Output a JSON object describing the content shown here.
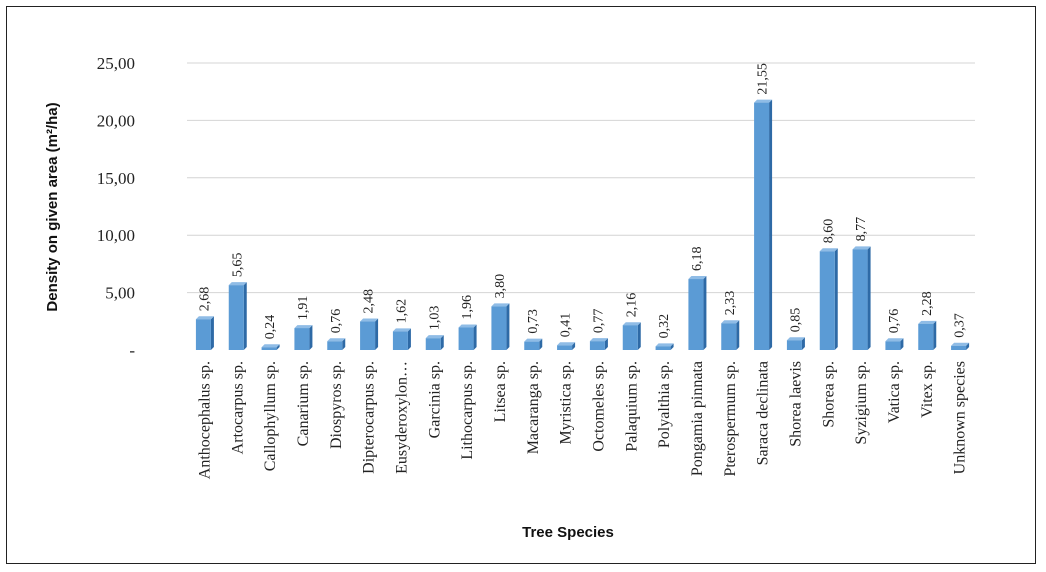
{
  "chart_data": {
    "type": "bar",
    "title": "",
    "xlabel": "Tree Species",
    "ylabel": "Density on  given area (m²/ha)",
    "ylim": [
      0,
      25
    ],
    "yticks": [
      0,
      5,
      10,
      15,
      20,
      25
    ],
    "ytick_labels": [
      "-",
      "5,00",
      "10,00",
      "15,00",
      "20,00",
      "25,00"
    ],
    "grid": true,
    "legend": "none",
    "categories": [
      "Anthocephalus sp.",
      "Artocarpus sp.",
      "Callophyllum sp.",
      "Canarium sp.",
      "Diospyros sp.",
      "Dipterocarpus sp.",
      "Eusyderoxylon…",
      "Garcinia sp.",
      "Lithocarpus sp.",
      "Litsea sp.",
      "Macaranga sp.",
      "Myristica sp.",
      "Octomeles sp.",
      "Palaquium sp.",
      "Polyalthia sp.",
      "Pongamia pinnata",
      "Pterospermum sp.",
      "Saraca declinata",
      "Shorea laevis",
      "Shorea sp.",
      "Syzigium sp.",
      "Vatica sp.",
      "Vitex sp.",
      "Unknown species"
    ],
    "values": [
      2.68,
      5.65,
      0.24,
      1.91,
      0.76,
      2.48,
      1.62,
      1.03,
      1.96,
      3.8,
      0.73,
      0.41,
      0.77,
      2.16,
      0.32,
      6.18,
      2.33,
      21.55,
      0.85,
      8.6,
      8.77,
      0.76,
      2.28,
      0.37
    ],
    "value_labels": [
      "2,68",
      "5,65",
      "0,24",
      "1,91",
      "0,76",
      "2,48",
      "1,62",
      "1,03",
      "1,96",
      "3,80",
      "0,73",
      "0,41",
      "0,77",
      "2,16",
      "0,32",
      "6,18",
      "2,33",
      "21,55",
      "0,85",
      "8,60",
      "8,77",
      "0,76",
      "2,28",
      "0,37"
    ],
    "colors": {
      "bar": "#5b9bd5",
      "bar_side": "#2e6aa6",
      "bar_top": "#8fbce6"
    }
  }
}
